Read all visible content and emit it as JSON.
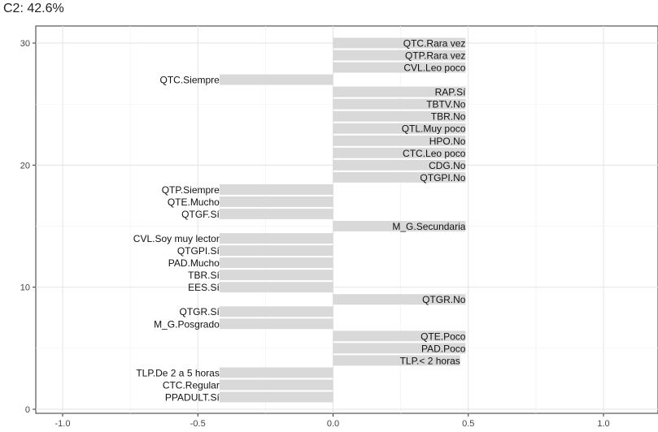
{
  "chart_data": {
    "type": "bar",
    "orientation": "horizontal",
    "title": "C2: 42.6%",
    "xlabel": "",
    "ylabel": "",
    "xlim": [
      -1.0,
      1.0
    ],
    "ylim": [
      0,
      31
    ],
    "x_ticks": [
      "-1.0",
      "-0.5",
      "0.0",
      "0.5",
      "1.0"
    ],
    "y_ticks": [
      "0",
      "10",
      "20",
      "30"
    ],
    "grid": true,
    "bar_color": "#d9d9d9",
    "categories": [
      "PPADULT.Sí",
      "CTC.Regular",
      "TLP.De 2 a 5 horas",
      "TLP.< 2 horas",
      "PAD.Poco",
      "QTE.Poco",
      "M_G.Posgrado",
      "QTGR.Sí",
      "QTGR.No",
      "EES.Sí",
      "TBR.Sí",
      "PAD.Mucho",
      "QTGPI.Sí",
      "CVL.Soy muy lector",
      "M_G.Secundaria",
      "QTGF.Sí",
      "QTE.Mucho",
      "QTP.Siempre",
      "QTGPI.No",
      "CDG.No",
      "CTC.Leo poco",
      "HPO.No",
      "QTL.Muy poco",
      "TBR.No",
      "TBTV.No",
      "RAP.Sí",
      "QTC.Siempre",
      "CVL.Leo poco",
      "QTP.Rara vez",
      "QTC.Rara vez"
    ],
    "values": [
      -0.42,
      -0.42,
      -0.42,
      0.47,
      0.49,
      0.49,
      -0.42,
      -0.42,
      0.49,
      -0.42,
      -0.42,
      -0.42,
      -0.42,
      -0.42,
      0.49,
      -0.42,
      -0.42,
      -0.42,
      0.49,
      0.49,
      0.49,
      0.49,
      0.49,
      0.49,
      0.49,
      0.49,
      -0.42,
      0.49,
      0.49,
      0.49
    ]
  }
}
